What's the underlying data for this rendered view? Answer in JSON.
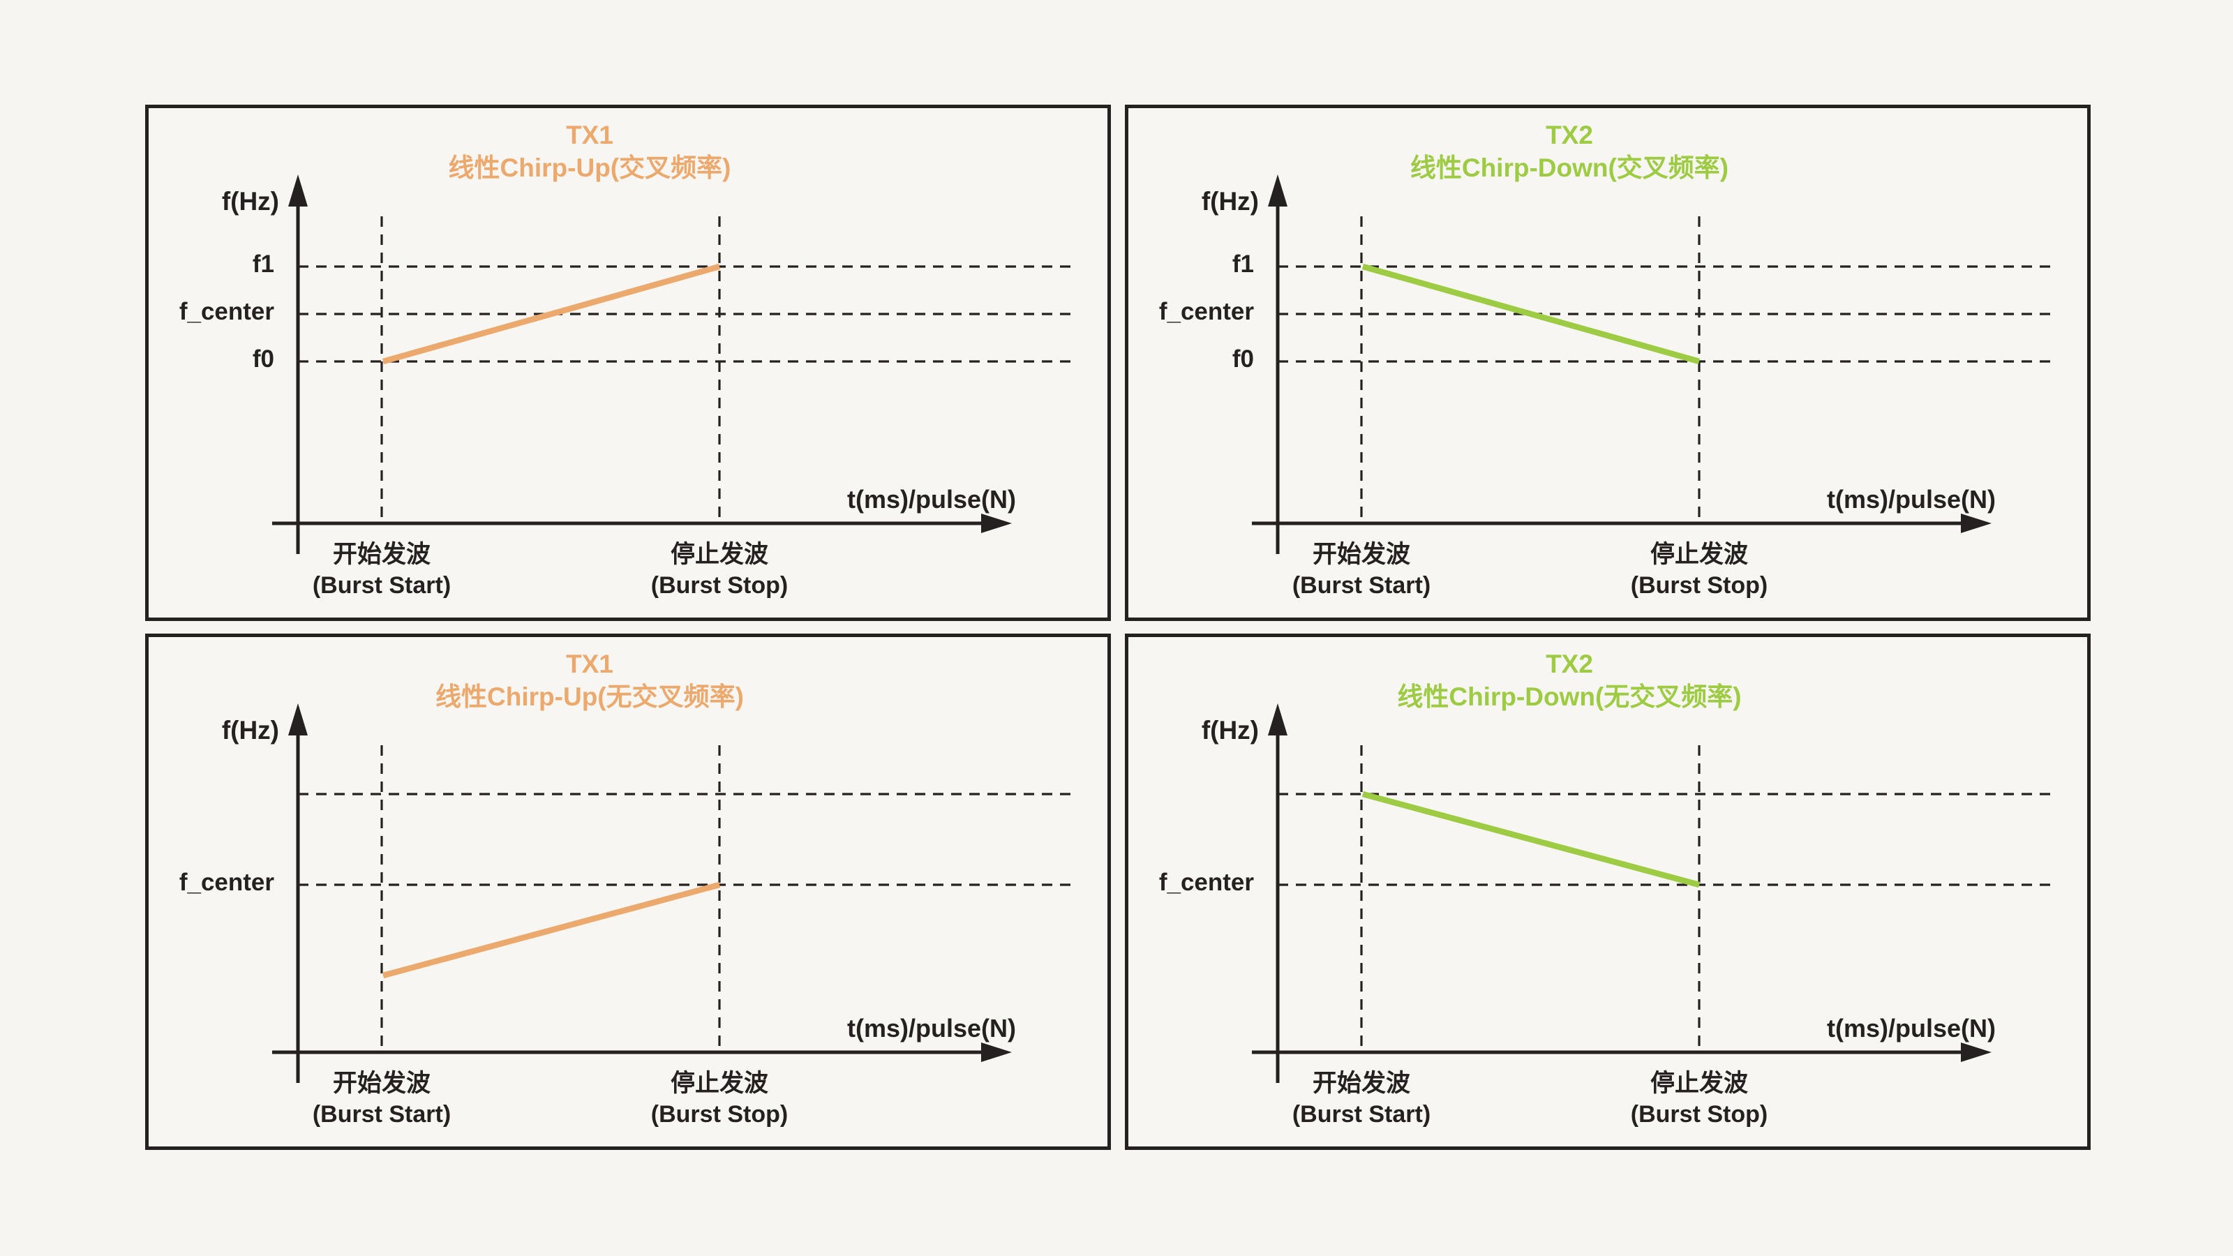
{
  "colors": {
    "background": "#F7F5F1",
    "panel_fill": "#F8F6F2",
    "ink": "#242120",
    "tx1_orange": "#EBA96E",
    "tx2_green": "#9DCB44"
  },
  "panels": [
    {
      "title_line1": "TX1",
      "title_line2": "线性Chirp-Up(交叉频率)",
      "accent": "#EBA96E",
      "y_axis_label": "f(Hz)",
      "x_axis_label": "t(ms)/pulse(N)",
      "gridlines": [
        {
          "f": 1,
          "label": "f1"
        },
        {
          "f": 0,
          "label": "f_center"
        },
        {
          "f": -1,
          "label": "f0"
        }
      ],
      "chirp": {
        "from_x": "burst_start",
        "from_f": -1,
        "to_x": "burst_stop",
        "to_f": 1
      },
      "x_ticks": [
        {
          "zh": "开始发波",
          "en": "(Burst Start)"
        },
        {
          "zh": "停止发波",
          "en": "(Burst Stop)"
        }
      ]
    },
    {
      "title_line1": "TX2",
      "title_line2": "线性Chirp-Down(交叉频率)",
      "accent": "#9DCB44",
      "y_axis_label": "f(Hz)",
      "x_axis_label": "t(ms)/pulse(N)",
      "gridlines": [
        {
          "f": 1,
          "label": "f1"
        },
        {
          "f": 0,
          "label": "f_center"
        },
        {
          "f": -1,
          "label": "f0"
        }
      ],
      "chirp": {
        "from_x": "burst_start",
        "from_f": 1,
        "to_x": "burst_stop",
        "to_f": -1
      },
      "x_ticks": [
        {
          "zh": "开始发波",
          "en": "(Burst Start)"
        },
        {
          "zh": "停止发波",
          "en": "(Burst Stop)"
        }
      ]
    },
    {
      "title_line1": "TX1",
      "title_line2": "线性Chirp-Up(无交叉频率)",
      "accent": "#EBA96E",
      "y_axis_label": "f(Hz)",
      "x_axis_label": "t(ms)/pulse(N)",
      "gridlines": [
        {
          "f": 1,
          "label": ""
        },
        {
          "f": 0,
          "label": "f_center"
        }
      ],
      "chirp": {
        "from_x": "burst_start",
        "from_f": -1,
        "to_x": "burst_stop",
        "to_f": 0
      },
      "x_ticks": [
        {
          "zh": "开始发波",
          "en": "(Burst Start)"
        },
        {
          "zh": "停止发波",
          "en": "(Burst Stop)"
        }
      ]
    },
    {
      "title_line1": "TX2",
      "title_line2": "线性Chirp-Down(无交叉频率)",
      "accent": "#9DCB44",
      "y_axis_label": "f(Hz)",
      "x_axis_label": "t(ms)/pulse(N)",
      "gridlines": [
        {
          "f": 1,
          "label": ""
        },
        {
          "f": 0,
          "label": "f_center"
        }
      ],
      "chirp": {
        "from_x": "burst_start",
        "from_f": 1,
        "to_x": "burst_stop",
        "to_f": 0
      },
      "x_ticks": [
        {
          "zh": "开始发波",
          "en": "(Burst Start)"
        },
        {
          "zh": "停止发波",
          "en": "(Burst Stop)"
        }
      ]
    }
  ],
  "chart_data": [
    {
      "type": "line",
      "title": "TX1 线性Chirp-Up(交叉频率)",
      "x": [
        "burst_start",
        "burst_stop"
      ],
      "y": [
        "f0",
        "f1"
      ],
      "y_gridlines": [
        "f1",
        "f_center",
        "f0"
      ],
      "color": "#EBA96E"
    },
    {
      "type": "line",
      "title": "TX2 线性Chirp-Down(交叉频率)",
      "x": [
        "burst_start",
        "burst_stop"
      ],
      "y": [
        "f1",
        "f0"
      ],
      "y_gridlines": [
        "f1",
        "f_center",
        "f0"
      ],
      "color": "#9DCB44"
    },
    {
      "type": "line",
      "title": "TX1 线性Chirp-Up(无交叉频率)",
      "x": [
        "burst_start",
        "burst_stop"
      ],
      "y": [
        "below f_center",
        "f_center"
      ],
      "y_gridlines": [
        "(unlabeled upper)",
        "f_center"
      ],
      "color": "#EBA96E"
    },
    {
      "type": "line",
      "title": "TX2 线性Chirp-Down(无交叉频率)",
      "x": [
        "burst_start",
        "burst_stop"
      ],
      "y": [
        "above f_center",
        "f_center"
      ],
      "y_gridlines": [
        "(unlabeled upper)",
        "f_center"
      ],
      "color": "#9DCB44"
    }
  ]
}
